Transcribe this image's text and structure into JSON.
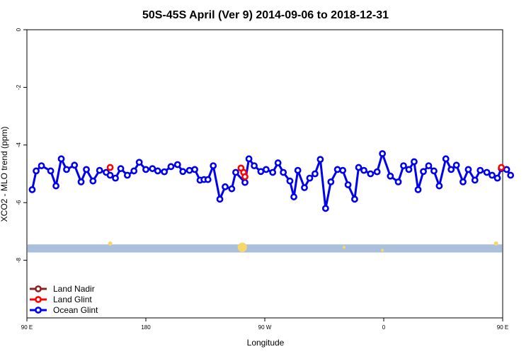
{
  "chart_data": {
    "type": "line",
    "title": "50S-45S April (Ver 9)   2014-09-06 to 2018-12-31",
    "xlabel": "Longitude",
    "ylabel": "XCO2 - MLO trend (ppm)",
    "xlim": [
      90,
      450
    ],
    "ylim": [
      -10,
      0
    ],
    "x_ticks": [
      {
        "value": 90,
        "label": "90 E"
      },
      {
        "value": 180,
        "label": "180"
      },
      {
        "value": 270,
        "label": "90 W"
      },
      {
        "value": 360,
        "label": "0"
      },
      {
        "value": 450,
        "label": "90 E"
      },
      {
        "value": 540,
        "label": "180"
      }
    ],
    "y_ticks": [
      {
        "value": 0,
        "label": "0"
      },
      {
        "value": -2,
        "label": "-2"
      },
      {
        "value": -4,
        "label": "-4"
      },
      {
        "value": -6,
        "label": "-6"
      },
      {
        "value": -8,
        "label": "-8"
      }
    ],
    "grid": false,
    "legend_position": "bottom-left",
    "colors": {
      "land_nadir": "#8b2323",
      "land_glint": "#ff0000",
      "ocean_glint": "#0000ee",
      "coverage_band": "#a9bfdc",
      "coverage_marks": "#f5d76e"
    },
    "series": [
      {
        "name": "Land Nadir",
        "x": [],
        "y": []
      },
      {
        "name": "Land Glint",
        "x": [
          153,
          252,
          254,
          255,
          449
        ],
        "y": [
          -4.78,
          -4.8,
          -4.95,
          -5.1,
          -4.78
        ]
      },
      {
        "name": "Ocean Glint",
        "x": [
          94,
          97,
          101,
          108,
          112,
          116,
          120,
          126,
          131,
          135,
          140,
          145,
          150,
          153,
          157,
          161,
          166,
          171,
          175,
          180,
          185,
          189,
          194,
          199,
          204,
          208,
          213,
          217,
          221,
          224,
          227,
          231,
          236,
          240,
          245,
          248,
          255,
          258,
          262,
          267,
          271,
          276,
          280,
          284,
          289,
          292,
          295,
          300,
          304,
          308,
          312,
          316,
          320,
          325,
          329,
          333,
          338,
          341,
          345,
          350,
          355,
          359,
          365,
          371,
          375,
          379,
          383,
          386,
          390,
          394,
          398,
          402,
          407,
          411,
          415,
          420,
          424,
          429,
          433,
          438,
          442,
          446,
          449,
          453,
          456
        ],
        "y": [
          -5.55,
          -4.9,
          -4.72,
          -4.9,
          -5.42,
          -4.48,
          -4.85,
          -4.7,
          -5.28,
          -4.85,
          -5.25,
          -4.88,
          -4.95,
          -5.05,
          -5.15,
          -4.82,
          -5.05,
          -4.9,
          -4.6,
          -4.85,
          -4.82,
          -4.9,
          -4.93,
          -4.75,
          -4.68,
          -4.92,
          -4.88,
          -4.85,
          -5.22,
          -5.2,
          -5.2,
          -4.72,
          -5.88,
          -5.45,
          -5.52,
          -4.95,
          -5.3,
          -4.48,
          -4.72,
          -4.92,
          -4.85,
          -4.95,
          -4.62,
          -4.95,
          -5.25,
          -5.8,
          -4.88,
          -5.48,
          -5.15,
          -5.0,
          -4.5,
          -6.2,
          -5.28,
          -4.85,
          -4.88,
          -5.38,
          -5.88,
          -4.78,
          -4.88,
          -5.0,
          -4.93,
          -4.3,
          -5.08,
          -5.28,
          -4.72,
          -4.85,
          -4.58,
          -5.55,
          -4.92,
          -4.72,
          -4.9,
          -5.42,
          -4.48,
          -4.85,
          -4.7,
          -5.28,
          -4.85,
          -5.22,
          -4.88,
          -4.95,
          -5.05,
          -5.15,
          -4.82,
          -4.85,
          -5.05
        ]
      }
    ],
    "coverage_band": {
      "y_min": -7.73,
      "y_max": -7.45
    },
    "coverage_marks": [
      {
        "x": 153,
        "y": -7.42,
        "size": 1
      },
      {
        "x": 253,
        "y": -7.55,
        "size": 3
      },
      {
        "x": 330,
        "y": -7.55,
        "size": 0.5
      },
      {
        "x": 359,
        "y": -7.65,
        "size": 0.5
      },
      {
        "x": 445,
        "y": -7.42,
        "size": 1
      }
    ]
  }
}
